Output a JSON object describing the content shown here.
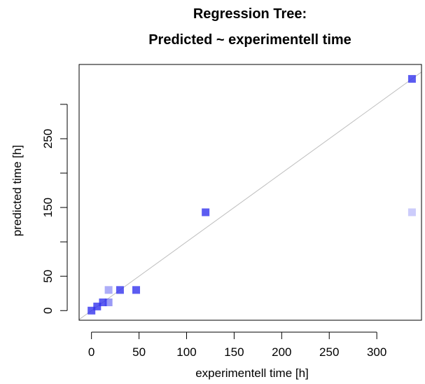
{
  "chart_data": {
    "type": "scatter",
    "title_lines": [
      "Regression Tree:",
      "Predicted ~ experimentell time"
    ],
    "xlabel": "experimentell time [h]",
    "ylabel": "predicted time [h]",
    "xlim": [
      -13,
      347
    ],
    "ylim": [
      -14,
      358
    ],
    "xticks": [
      0,
      50,
      100,
      150,
      200,
      250,
      300
    ],
    "yticks": [
      0,
      50,
      100,
      150,
      200,
      250,
      300
    ],
    "ytick_labels": [
      "0",
      "50",
      "",
      "150",
      "",
      "250",
      ""
    ],
    "reference_line": "y = x",
    "reference_line_color": "#bebebe",
    "marker_color": "#3333ee",
    "points": [
      {
        "x": 0,
        "y": 0,
        "alpha": 0.8
      },
      {
        "x": 6,
        "y": 6,
        "alpha": 0.8
      },
      {
        "x": 12,
        "y": 12,
        "alpha": 0.8
      },
      {
        "x": 18,
        "y": 12,
        "alpha": 0.5
      },
      {
        "x": 18,
        "y": 30,
        "alpha": 0.4
      },
      {
        "x": 30,
        "y": 30,
        "alpha": 0.8
      },
      {
        "x": 47,
        "y": 30,
        "alpha": 0.8
      },
      {
        "x": 120,
        "y": 143,
        "alpha": 0.8
      },
      {
        "x": 337,
        "y": 337,
        "alpha": 0.8
      },
      {
        "x": 337,
        "y": 143,
        "alpha": 0.25
      }
    ]
  }
}
